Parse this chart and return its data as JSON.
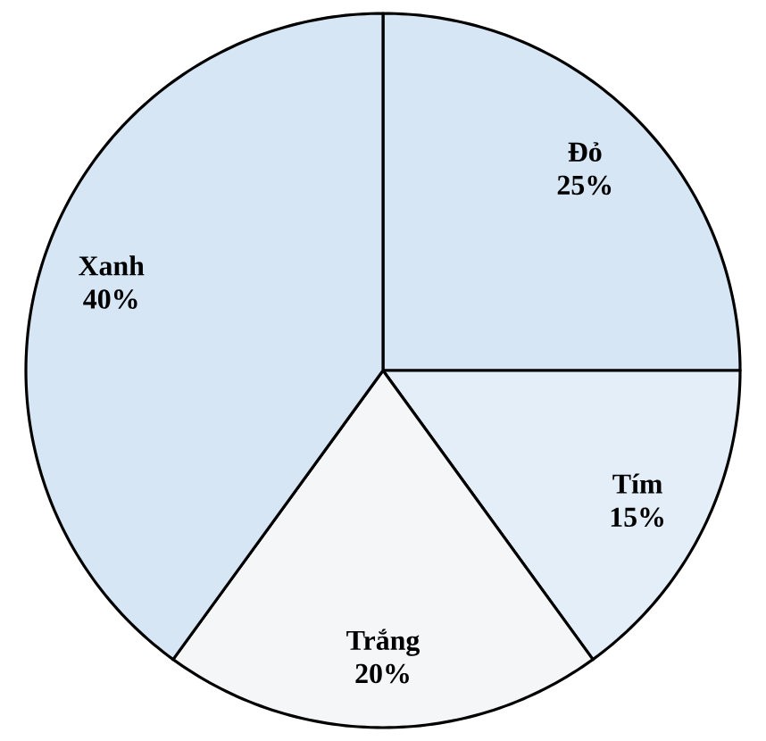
{
  "chart_data": {
    "type": "pie",
    "categories": [
      "Đỏ",
      "Tím",
      "Trắng",
      "Xanh"
    ],
    "values": [
      25,
      15,
      20,
      40
    ],
    "value_labels": [
      "25%",
      "15%",
      "20%",
      "40%"
    ],
    "colors": [
      "#d6e6f5",
      "#e4eef8",
      "#f4f6f8",
      "#d6e6f5"
    ]
  }
}
